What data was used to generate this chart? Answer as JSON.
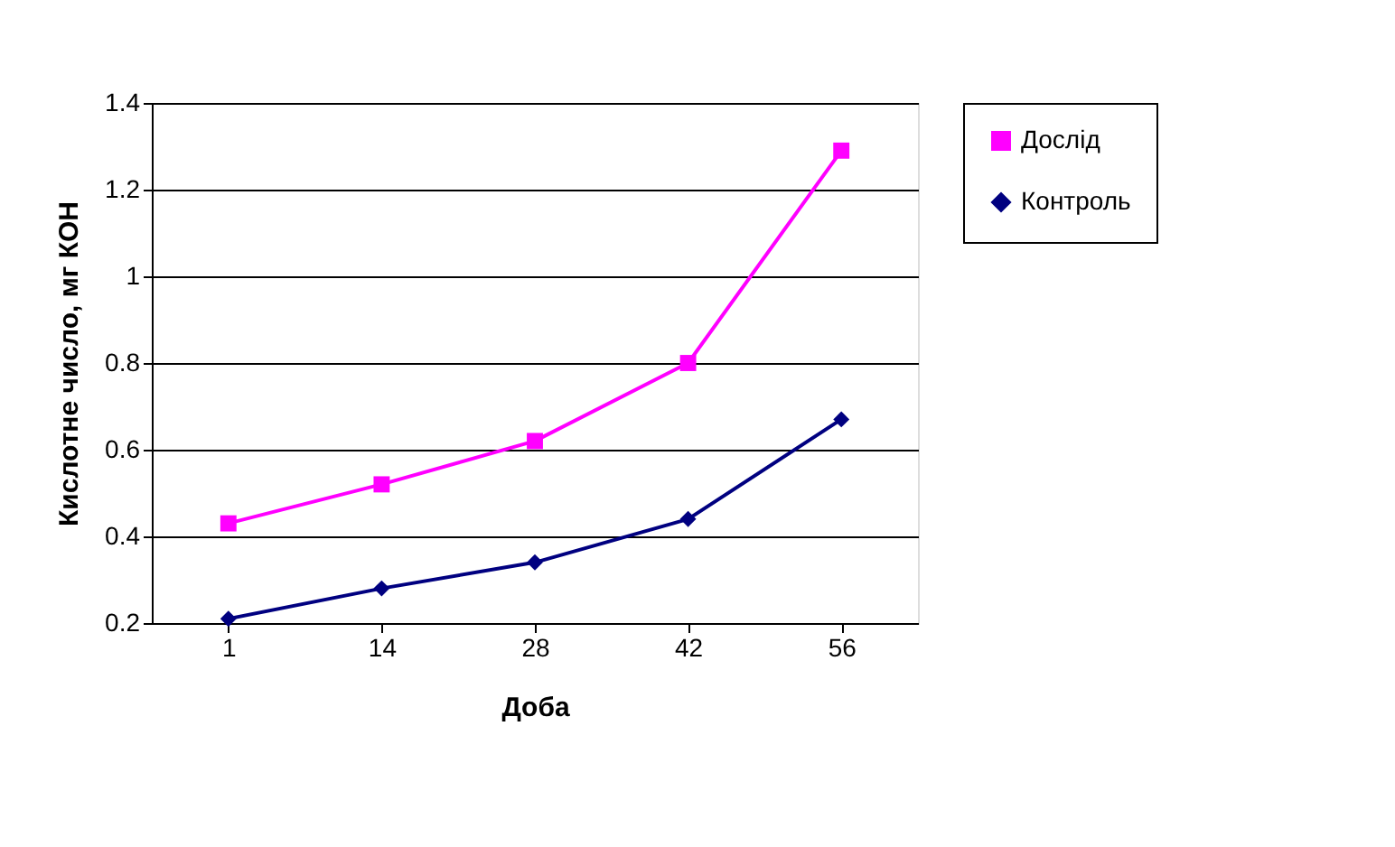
{
  "chart_data": {
    "type": "line",
    "xlabel": "Доба",
    "ylabel": "Кислотне число, мг КОН",
    "categories": [
      "1",
      "14",
      "28",
      "42",
      "56"
    ],
    "series": [
      {
        "name": "Дослід",
        "color": "#ff00ff",
        "marker": "square",
        "values": [
          0.43,
          0.52,
          0.62,
          0.8,
          1.29
        ]
      },
      {
        "name": "Контроль",
        "color": "#000080",
        "marker": "diamond",
        "values": [
          0.21,
          0.28,
          0.34,
          0.44,
          0.67
        ]
      }
    ],
    "ylim": [
      0.2,
      1.4
    ],
    "yticks": [
      0.2,
      0.4,
      0.6,
      0.8,
      1,
      1.2,
      1.4
    ],
    "grid": "y",
    "legend": "right",
    "line_style": "solid"
  }
}
